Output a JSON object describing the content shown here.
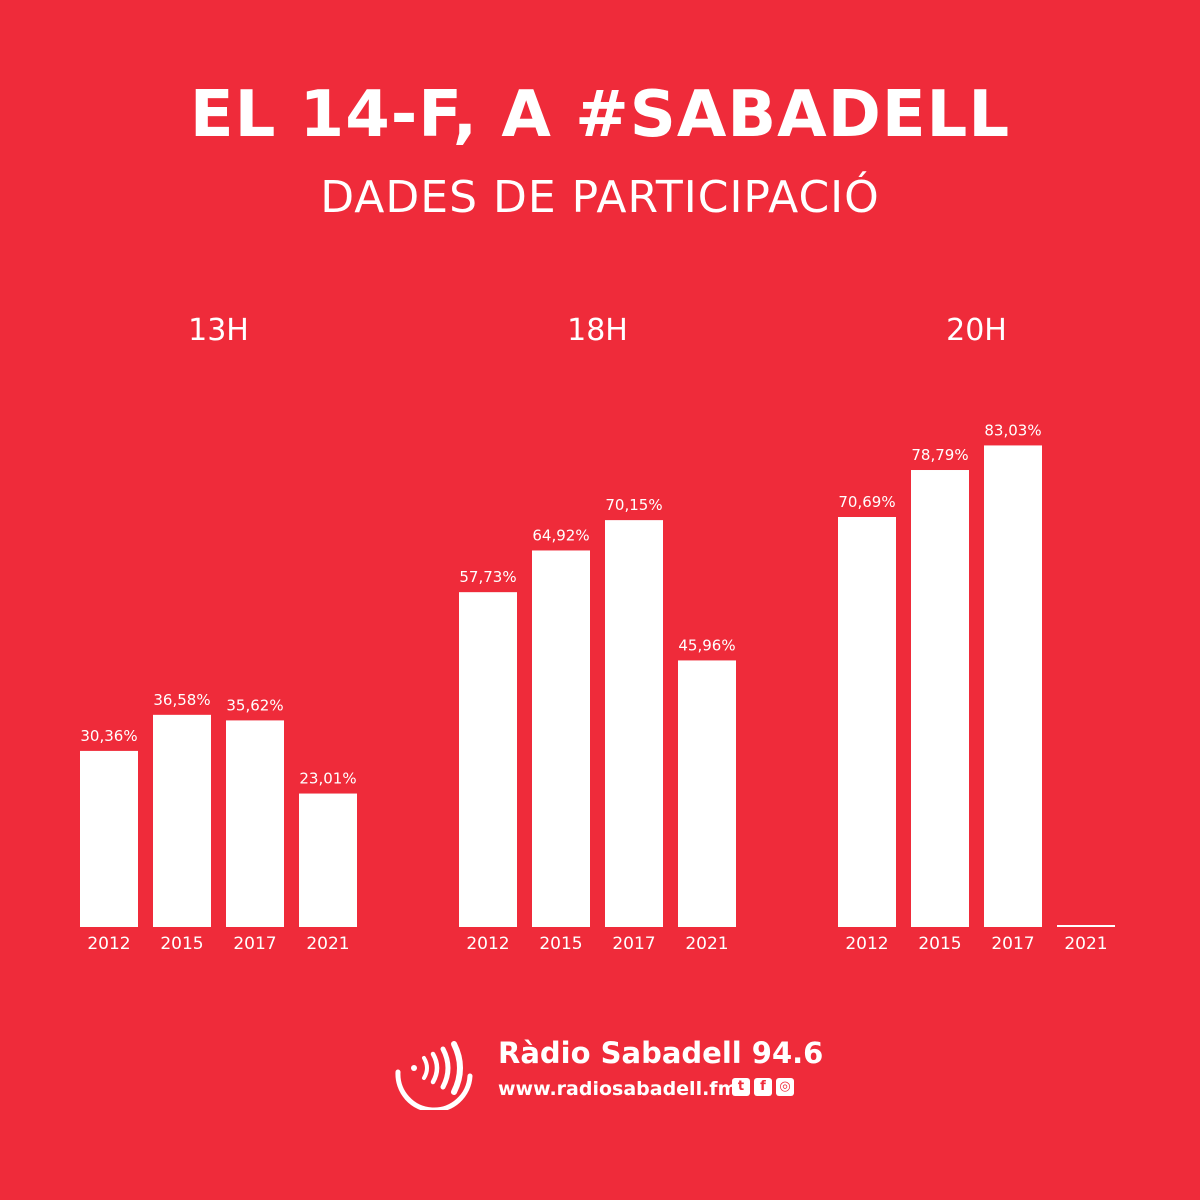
{
  "header": {
    "title": "EL 14-F, A #SABADELL",
    "subtitle": "DADES DE PARTICIPACIÓ"
  },
  "chart_data": [
    {
      "type": "bar",
      "title": "13H",
      "categories": [
        "2012",
        "2015",
        "2017",
        "2021"
      ],
      "values": [
        30.36,
        36.58,
        35.62,
        23.01
      ],
      "value_labels": [
        "30,36%",
        "36,58%",
        "35,62%",
        "23,01%"
      ],
      "ylim": [
        0,
        100
      ],
      "grid": false
    },
    {
      "type": "bar",
      "title": "18H",
      "categories": [
        "2012",
        "2015",
        "2017",
        "2021"
      ],
      "values": [
        57.73,
        64.92,
        70.15,
        45.96
      ],
      "value_labels": [
        "57,73%",
        "64,92%",
        "70,15%",
        "45,96%"
      ],
      "ylim": [
        0,
        100
      ],
      "grid": false
    },
    {
      "type": "bar",
      "title": "20H",
      "categories": [
        "2012",
        "2015",
        "2017",
        "2021"
      ],
      "values": [
        70.69,
        78.79,
        83.03,
        null
      ],
      "value_labels": [
        "70,69%",
        "78,79%",
        "83,03%",
        ""
      ],
      "ylim": [
        0,
        100
      ],
      "grid": false
    }
  ],
  "footer": {
    "brand": "Ràdio Sabadell 94.6",
    "url": "www.radiosabadell.fm",
    "social_icons": [
      "twitter-icon",
      "facebook-icon",
      "instagram-icon"
    ]
  },
  "colors": {
    "background": "#EF2B3A",
    "bars": "#FFFFFF"
  }
}
